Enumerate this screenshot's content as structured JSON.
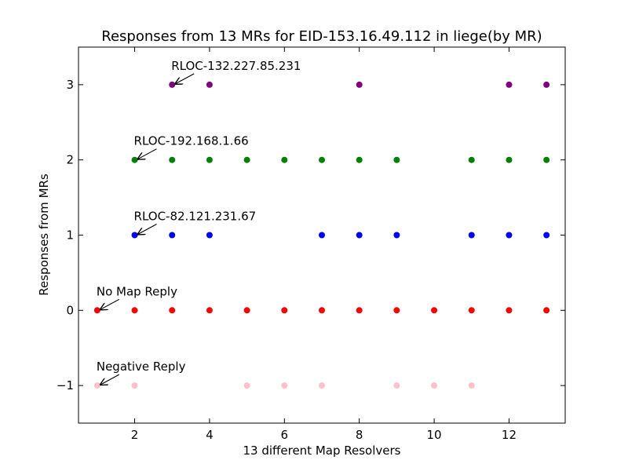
{
  "chart_data": {
    "type": "scatter",
    "title": "Responses from 13 MRs for EID-153.16.49.112 in liege(by MR)",
    "xlabel": "13 different Map Resolvers",
    "ylabel": "Responses from MRs",
    "xlim": [
      0.5,
      13.5
    ],
    "ylim": [
      -1.5,
      3.5
    ],
    "xticks": [
      2,
      4,
      6,
      8,
      10,
      12
    ],
    "yticks": [
      -1,
      0,
      1,
      2,
      3
    ],
    "ytick_labels": [
      "−1",
      "0",
      "1",
      "2",
      "3"
    ],
    "grid": false,
    "series": [
      {
        "color": "#ffc0cb",
        "x": [
          1,
          2,
          5,
          6,
          7,
          9,
          10,
          11
        ],
        "y": [
          -1,
          -1,
          -1,
          -1,
          -1,
          -1,
          -1,
          -1
        ]
      },
      {
        "color": "#ff0000",
        "x": [
          1,
          2,
          3,
          4,
          5,
          6,
          7,
          8,
          9,
          10,
          11,
          12,
          13
        ],
        "y": [
          0,
          0,
          0,
          0,
          0,
          0,
          0,
          0,
          0,
          0,
          0,
          0,
          0
        ]
      },
      {
        "color": "#0000ff",
        "x": [
          2,
          3,
          4,
          7,
          8,
          9,
          11,
          12,
          13
        ],
        "y": [
          1,
          1,
          1,
          1,
          1,
          1,
          1,
          1,
          1
        ]
      },
      {
        "color": "#008000",
        "x": [
          2,
          3,
          4,
          5,
          6,
          7,
          8,
          9,
          11,
          12,
          13
        ],
        "y": [
          2,
          2,
          2,
          2,
          2,
          2,
          2,
          2,
          2,
          2,
          2
        ]
      },
      {
        "color": "#800080",
        "x": [
          3,
          4,
          8,
          12,
          13
        ],
        "y": [
          3,
          3,
          3,
          3,
          3
        ]
      }
    ],
    "annotations": [
      {
        "text": "RLOC-132.227.85.231",
        "x": 3,
        "y": 3
      },
      {
        "text": "RLOC-192.168.1.66",
        "x": 2,
        "y": 2
      },
      {
        "text": "RLOC-82.121.231.67",
        "x": 2,
        "y": 1
      },
      {
        "text": "No Map Reply",
        "x": 1,
        "y": 0
      },
      {
        "text": "Negative Reply",
        "x": 1,
        "y": -1
      }
    ]
  }
}
